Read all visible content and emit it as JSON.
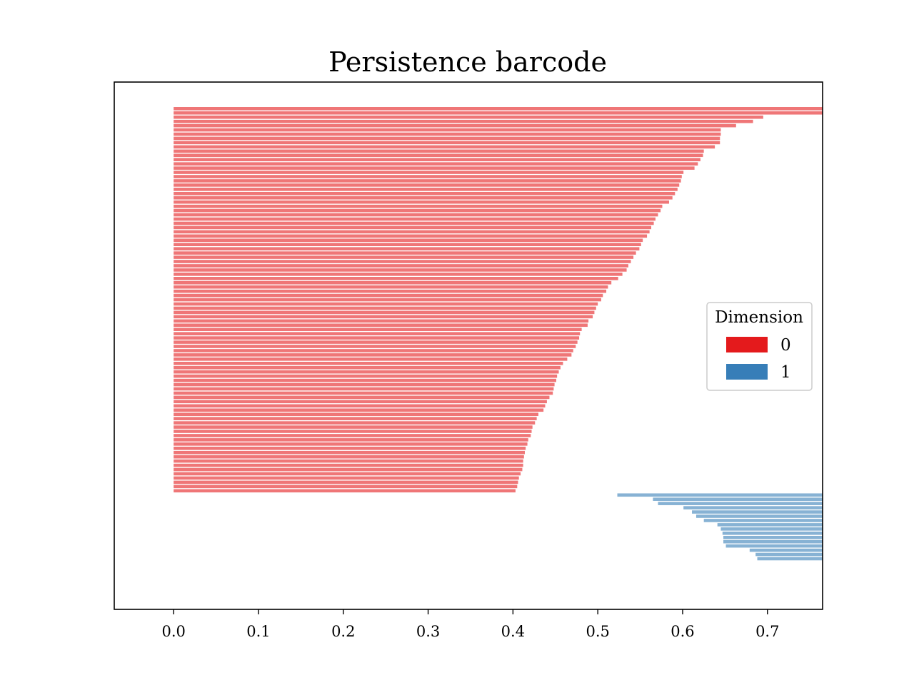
{
  "chart_data": {
    "type": "bar",
    "orientation": "horizontal",
    "title": "Persistence barcode",
    "xlabel": "",
    "ylabel": "",
    "xlim": [
      -0.07,
      0.765
    ],
    "xticks": [
      0.0,
      0.1,
      0.2,
      0.3,
      0.4,
      0.5,
      0.6,
      0.7
    ],
    "xtick_labels": [
      "0.0",
      "0.1",
      "0.2",
      "0.3",
      "0.4",
      "0.5",
      "0.6",
      "0.7"
    ],
    "grid": false,
    "legend": {
      "title": "Dimension",
      "placement": "center-right",
      "entries": [
        {
          "label": "0",
          "color": "#e41a1c"
        },
        {
          "label": "1",
          "color": "#377eb8"
        }
      ]
    },
    "series": [
      {
        "name": "0",
        "color": "#e41a1c",
        "opacity": 0.6,
        "bars": [
          [
            0.0,
            0.765
          ],
          [
            0.0,
            0.765
          ],
          [
            0.0,
            0.695
          ],
          [
            0.0,
            0.683
          ],
          [
            0.0,
            0.663
          ],
          [
            0.0,
            0.645
          ],
          [
            0.0,
            0.645
          ],
          [
            0.0,
            0.644
          ],
          [
            0.0,
            0.644
          ],
          [
            0.0,
            0.638
          ],
          [
            0.0,
            0.625
          ],
          [
            0.0,
            0.624
          ],
          [
            0.0,
            0.621
          ],
          [
            0.0,
            0.618
          ],
          [
            0.0,
            0.614
          ],
          [
            0.0,
            0.601
          ],
          [
            0.0,
            0.599
          ],
          [
            0.0,
            0.598
          ],
          [
            0.0,
            0.596
          ],
          [
            0.0,
            0.594
          ],
          [
            0.0,
            0.591
          ],
          [
            0.0,
            0.588
          ],
          [
            0.0,
            0.584
          ],
          [
            0.0,
            0.576
          ],
          [
            0.0,
            0.574
          ],
          [
            0.0,
            0.571
          ],
          [
            0.0,
            0.568
          ],
          [
            0.0,
            0.566
          ],
          [
            0.0,
            0.563
          ],
          [
            0.0,
            0.561
          ],
          [
            0.0,
            0.558
          ],
          [
            0.0,
            0.553
          ],
          [
            0.0,
            0.551
          ],
          [
            0.0,
            0.549
          ],
          [
            0.0,
            0.545
          ],
          [
            0.0,
            0.542
          ],
          [
            0.0,
            0.539
          ],
          [
            0.0,
            0.536
          ],
          [
            0.0,
            0.534
          ],
          [
            0.0,
            0.529
          ],
          [
            0.0,
            0.524
          ],
          [
            0.0,
            0.516
          ],
          [
            0.0,
            0.512
          ],
          [
            0.0,
            0.51
          ],
          [
            0.0,
            0.506
          ],
          [
            0.0,
            0.504
          ],
          [
            0.0,
            0.5
          ],
          [
            0.0,
            0.498
          ],
          [
            0.0,
            0.496
          ],
          [
            0.0,
            0.494
          ],
          [
            0.0,
            0.489
          ],
          [
            0.0,
            0.488
          ],
          [
            0.0,
            0.481
          ],
          [
            0.0,
            0.479
          ],
          [
            0.0,
            0.478
          ],
          [
            0.0,
            0.476
          ],
          [
            0.0,
            0.474
          ],
          [
            0.0,
            0.471
          ],
          [
            0.0,
            0.469
          ],
          [
            0.0,
            0.464
          ],
          [
            0.0,
            0.459
          ],
          [
            0.0,
            0.456
          ],
          [
            0.0,
            0.454
          ],
          [
            0.0,
            0.452
          ],
          [
            0.0,
            0.451
          ],
          [
            0.0,
            0.449
          ],
          [
            0.0,
            0.448
          ],
          [
            0.0,
            0.447
          ],
          [
            0.0,
            0.443
          ],
          [
            0.0,
            0.44
          ],
          [
            0.0,
            0.438
          ],
          [
            0.0,
            0.436
          ],
          [
            0.0,
            0.43
          ],
          [
            0.0,
            0.428
          ],
          [
            0.0,
            0.426
          ],
          [
            0.0,
            0.423
          ],
          [
            0.0,
            0.422
          ],
          [
            0.0,
            0.421
          ],
          [
            0.0,
            0.418
          ],
          [
            0.0,
            0.417
          ],
          [
            0.0,
            0.415
          ],
          [
            0.0,
            0.414
          ],
          [
            0.0,
            0.413
          ],
          [
            0.0,
            0.412
          ],
          [
            0.0,
            0.412
          ],
          [
            0.0,
            0.411
          ],
          [
            0.0,
            0.409
          ],
          [
            0.0,
            0.407
          ],
          [
            0.0,
            0.406
          ],
          [
            0.0,
            0.405
          ],
          [
            0.0,
            0.403
          ]
        ]
      },
      {
        "name": "1",
        "color": "#377eb8",
        "opacity": 0.6,
        "bars": [
          [
            0.523,
            0.765
          ],
          [
            0.565,
            0.765
          ],
          [
            0.571,
            0.765
          ],
          [
            0.601,
            0.765
          ],
          [
            0.611,
            0.765
          ],
          [
            0.616,
            0.765
          ],
          [
            0.625,
            0.765
          ],
          [
            0.641,
            0.765
          ],
          [
            0.645,
            0.765
          ],
          [
            0.647,
            0.765
          ],
          [
            0.648,
            0.765
          ],
          [
            0.648,
            0.765
          ],
          [
            0.651,
            0.765
          ],
          [
            0.679,
            0.765
          ],
          [
            0.686,
            0.765
          ],
          [
            0.688,
            0.765
          ]
        ]
      }
    ]
  }
}
